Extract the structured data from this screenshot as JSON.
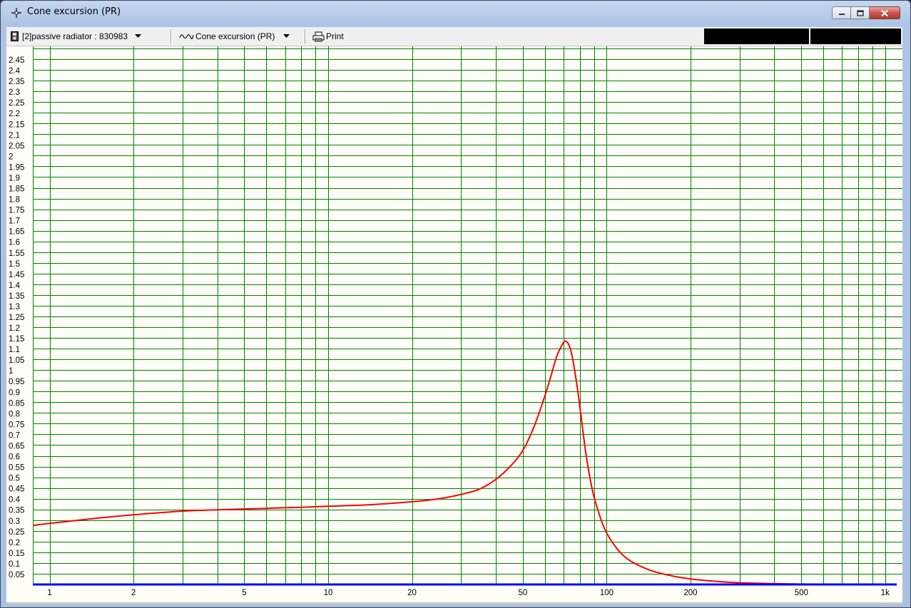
{
  "window": {
    "title": "Cone excursion (PR)",
    "accent": "#adc5e4",
    "close_color": "#c75050"
  },
  "icons": {
    "app": "crosshair-icon",
    "minimize": "minimize-icon",
    "maximize": "maximize-icon",
    "close": "close-icon",
    "driver": "speaker-icon",
    "curve": "waveform-icon",
    "print": "printer-icon"
  },
  "toolbar": {
    "driver_select": "[2]passive radiator : 830983",
    "curve_select": "Cone excursion (PR)",
    "print_label": "Print"
  },
  "chart_data": {
    "type": "line",
    "title": "",
    "xlabel": "",
    "ylabel": "",
    "x_scale": "log",
    "xlim": [
      0.87,
      1100
    ],
    "ylim": [
      0,
      2.5
    ],
    "grid": true,
    "grid_color": "#008000",
    "background": "#fffff8",
    "x_ticks": [
      {
        "v": 1,
        "label": "1"
      },
      {
        "v": 2,
        "label": "2"
      },
      {
        "v": 5,
        "label": "5"
      },
      {
        "v": 10,
        "label": "10"
      },
      {
        "v": 20,
        "label": "20"
      },
      {
        "v": 50,
        "label": "50"
      },
      {
        "v": 100,
        "label": "100"
      },
      {
        "v": 200,
        "label": "200"
      },
      {
        "v": 500,
        "label": "500"
      },
      {
        "v": 1000,
        "label": "1k"
      }
    ],
    "x_gridlines": [
      1,
      2,
      3,
      4,
      5,
      6,
      7,
      8,
      9,
      10,
      20,
      30,
      40,
      50,
      60,
      70,
      80,
      90,
      100,
      200,
      300,
      400,
      500,
      600,
      700,
      800,
      900,
      1000
    ],
    "y_ticks": [
      "0.05",
      "0.1",
      "0.15",
      "0.2",
      "0.25",
      "0.3",
      "0.35",
      "0.4",
      "0.45",
      "0.5",
      "0.55",
      "0.6",
      "0.65",
      "0.7",
      "0.75",
      "0.8",
      "0.85",
      "0.9",
      "0.95",
      "1",
      "1.05",
      "1.1",
      "1.15",
      "1.2",
      "1.25",
      "1.3",
      "1.35",
      "1.4",
      "1.45",
      "1.5",
      "1.55",
      "1.6",
      "1.65",
      "1.7",
      "1.75",
      "1.8",
      "1.85",
      "1.9",
      "1.95",
      "2",
      "2.05",
      "2.1",
      "2.15",
      "2.2",
      "2.25",
      "2.3",
      "2.35",
      "2.4",
      "2.45"
    ],
    "series": [
      {
        "color": "#ff0000",
        "points": [
          [
            0.87,
            0.275
          ],
          [
            1,
            0.285
          ],
          [
            1.5,
            0.31
          ],
          [
            2,
            0.325
          ],
          [
            3,
            0.342
          ],
          [
            4,
            0.348
          ],
          [
            5,
            0.352
          ],
          [
            6,
            0.355
          ],
          [
            7,
            0.358
          ],
          [
            8,
            0.36
          ],
          [
            10,
            0.365
          ],
          [
            12,
            0.368
          ],
          [
            15,
            0.374
          ],
          [
            20,
            0.386
          ],
          [
            25,
            0.4
          ],
          [
            30,
            0.42
          ],
          [
            35,
            0.445
          ],
          [
            40,
            0.49
          ],
          [
            45,
            0.55
          ],
          [
            50,
            0.625
          ],
          [
            55,
            0.74
          ],
          [
            60,
            0.88
          ],
          [
            63,
            0.97
          ],
          [
            66,
            1.06
          ],
          [
            69,
            1.115
          ],
          [
            71,
            1.135
          ],
          [
            73,
            1.12
          ],
          [
            75,
            1.07
          ],
          [
            78,
            0.94
          ],
          [
            81,
            0.78
          ],
          [
            84,
            0.62
          ],
          [
            87,
            0.5
          ],
          [
            90,
            0.41
          ],
          [
            95,
            0.31
          ],
          [
            100,
            0.24
          ],
          [
            110,
            0.16
          ],
          [
            120,
            0.115
          ],
          [
            135,
            0.08
          ],
          [
            150,
            0.058
          ],
          [
            175,
            0.038
          ],
          [
            200,
            0.026
          ],
          [
            250,
            0.014
          ],
          [
            300,
            0.008
          ],
          [
            400,
            0.004
          ],
          [
            500,
            0.002
          ],
          [
            700,
            0.001
          ],
          [
            1000,
            0.0005
          ],
          [
            1100,
            0.0004
          ]
        ]
      },
      {
        "color": "#0000ff",
        "points": [
          [
            0.87,
            0.0
          ],
          [
            1100,
            0.0
          ]
        ]
      }
    ]
  }
}
